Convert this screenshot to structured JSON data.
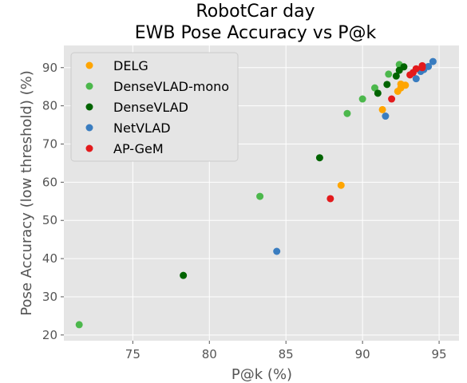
{
  "chart_data": {
    "type": "scatter",
    "title": "RobotCar day",
    "subtitle": "EWB Pose Accuracy vs P@k",
    "xlabel": "P@k (%)",
    "ylabel": "Pose Accuracy (low threshold) (%)",
    "xlim": [
      70.5,
      96.3
    ],
    "ylim": [
      18.5,
      95.8
    ],
    "xticks": [
      75,
      80,
      85,
      90,
      95
    ],
    "yticks": [
      20,
      30,
      40,
      50,
      60,
      70,
      80,
      90
    ],
    "grid": true,
    "legend_position": "top-left",
    "series": [
      {
        "name": "DELG",
        "color": "#FFA500",
        "points": [
          [
            88.6,
            59.2
          ],
          [
            91.3,
            79.0
          ],
          [
            92.3,
            83.8
          ],
          [
            92.5,
            84.7
          ],
          [
            92.5,
            85.7
          ],
          [
            92.8,
            85.4
          ]
        ]
      },
      {
        "name": "DenseVLAD-mono",
        "color": "#4CB84C",
        "points": [
          [
            71.5,
            22.7
          ],
          [
            83.3,
            56.3
          ],
          [
            89.0,
            78.0
          ],
          [
            90.0,
            81.8
          ],
          [
            90.8,
            84.7
          ],
          [
            91.7,
            88.3
          ],
          [
            92.4,
            90.8
          ]
        ]
      },
      {
        "name": "DenseVLAD",
        "color": "#006400",
        "points": [
          [
            78.3,
            35.6
          ],
          [
            87.2,
            66.4
          ],
          [
            91.0,
            83.3
          ],
          [
            91.6,
            85.6
          ],
          [
            92.2,
            87.8
          ],
          [
            92.4,
            89.3
          ],
          [
            92.7,
            90.2
          ]
        ]
      },
      {
        "name": "NetVLAD",
        "color": "#3A7DC0",
        "points": [
          [
            84.4,
            41.9
          ],
          [
            91.5,
            77.3
          ],
          [
            93.5,
            87.1
          ],
          [
            93.8,
            89.0
          ],
          [
            94.0,
            89.5
          ],
          [
            94.3,
            90.3
          ],
          [
            94.6,
            91.6
          ]
        ]
      },
      {
        "name": "AP-GeM",
        "color": "#E31A1C",
        "points": [
          [
            87.9,
            55.7
          ],
          [
            91.9,
            81.8
          ],
          [
            93.1,
            88.1
          ],
          [
            93.3,
            88.7
          ],
          [
            93.5,
            89.7
          ],
          [
            93.9,
            90.0
          ],
          [
            93.9,
            90.5
          ]
        ]
      }
    ]
  }
}
